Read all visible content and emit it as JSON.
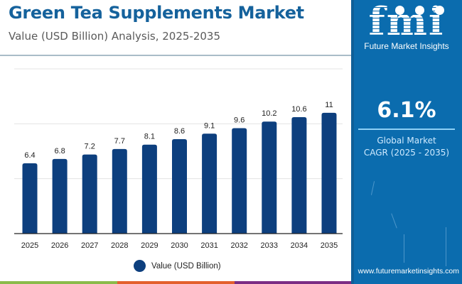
{
  "header": {
    "title": "Green Tea Supplements Market",
    "subtitle": "Value (USD Billion) Analysis, 2025-2035"
  },
  "side_panel": {
    "logo_letters": "fmi",
    "logo_name": "Future Market Insights",
    "cagr_value": "6.1%",
    "cagr_label_line1": "Global Market",
    "cagr_label_line2": "CAGR (2025 - 2035)",
    "website": "www.futuremarketinsights.com"
  },
  "colors": {
    "bar": "#0d3f7e",
    "title": "#15629c",
    "panel": "#0b6cae",
    "strip": [
      "#8bbb4a",
      "#e4602d",
      "#7b2d84",
      "#0b6cae"
    ]
  },
  "chart_data": {
    "type": "bar",
    "title": "Green Tea Supplements Market",
    "subtitle": "Value (USD Billion) Analysis, 2025-2035",
    "xlabel": "",
    "ylabel": "",
    "categories": [
      "2025",
      "2026",
      "2027",
      "2028",
      "2029",
      "2030",
      "2031",
      "2032",
      "2033",
      "2034",
      "2035"
    ],
    "series": [
      {
        "name": "Value (USD Billion)",
        "values": [
          6.4,
          6.8,
          7.2,
          7.7,
          8.1,
          8.6,
          9.1,
          9.6,
          10.2,
          10.6,
          11
        ],
        "labels": [
          "6.4",
          "6.8",
          "7.2",
          "7.7",
          "8.1",
          "8.6",
          "9.1",
          "9.6",
          "10.2",
          "10.6",
          "11"
        ]
      }
    ],
    "ylim": [
      0,
      15
    ],
    "gridlines": [
      5,
      10,
      15
    ],
    "grid": true,
    "y_tick_labels_visible": false,
    "legend": {
      "position": "bottom-center",
      "entries": [
        "Value (USD Billion)"
      ]
    }
  }
}
